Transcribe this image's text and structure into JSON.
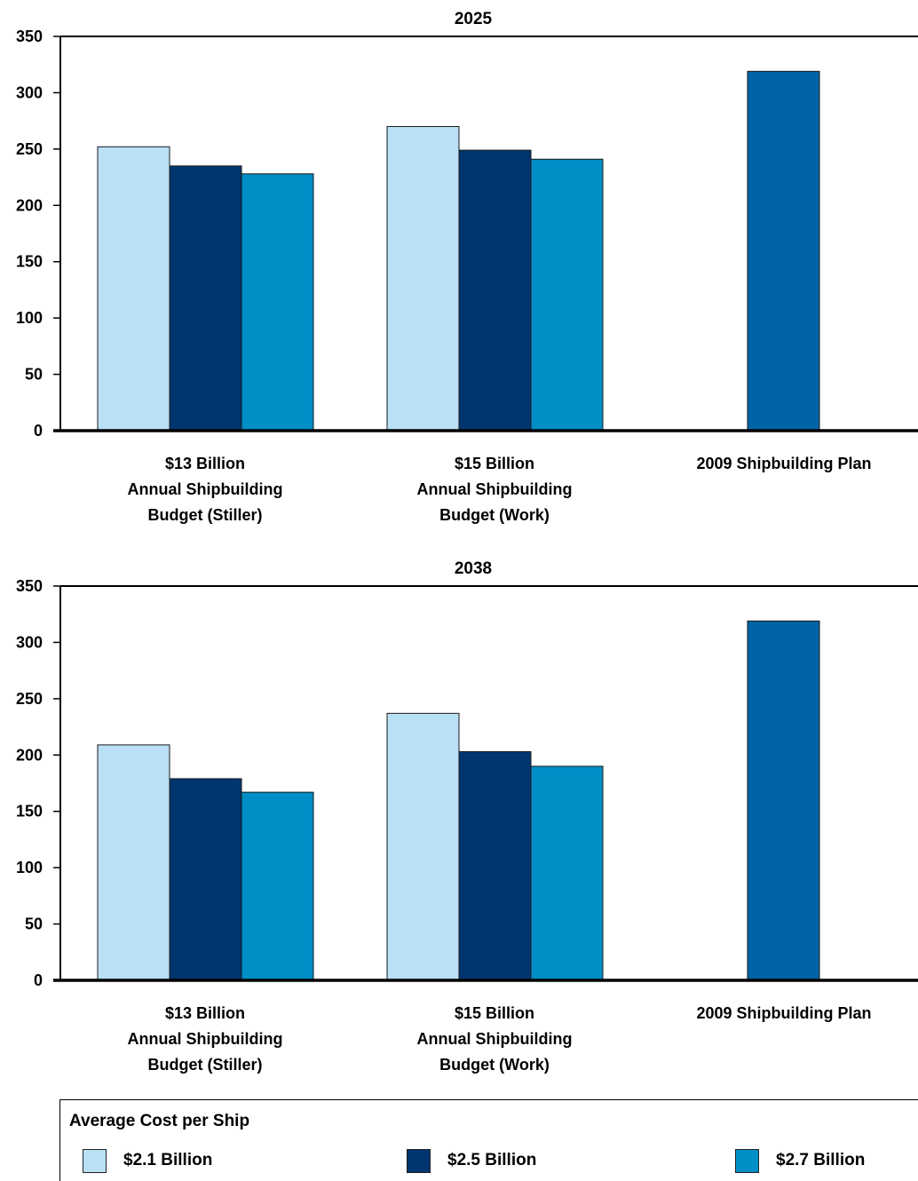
{
  "chart_data": [
    {
      "type": "bar",
      "title": "2025",
      "categories": [
        [
          "$13 Billion",
          "Annual Shipbuilding",
          "Budget (Stiller)"
        ],
        [
          "$15 Billion",
          "Annual Shipbuilding",
          "Budget (Work)"
        ],
        [
          "2009 Shipbuilding Plan"
        ]
      ],
      "ylim": [
        0,
        350
      ],
      "yticks": [
        0,
        50,
        100,
        150,
        200,
        250,
        300,
        350
      ],
      "series": [
        {
          "name": "$2.1 Billion",
          "color": "#b9e0f5",
          "values": [
            252,
            270,
            null
          ]
        },
        {
          "name": "$2.5 Billion",
          "color": "#00356f",
          "values": [
            235,
            249,
            null
          ]
        },
        {
          "name": "$2.7 Billion",
          "color": "#008ec6",
          "values": [
            228,
            241,
            null
          ]
        },
        {
          "name": "",
          "color": "#0063a5",
          "values": [
            null,
            null,
            319
          ]
        }
      ]
    },
    {
      "type": "bar",
      "title": "2038",
      "categories": [
        [
          "$13 Billion",
          "Annual Shipbuilding",
          "Budget (Stiller)"
        ],
        [
          "$15 Billion",
          "Annual Shipbuilding",
          "Budget (Work)"
        ],
        [
          "2009 Shipbuilding Plan"
        ]
      ],
      "ylim": [
        0,
        350
      ],
      "yticks": [
        0,
        50,
        100,
        150,
        200,
        250,
        300,
        350
      ],
      "series": [
        {
          "name": "$2.1 Billion",
          "color": "#b9e0f5",
          "values": [
            209,
            237,
            null
          ]
        },
        {
          "name": "$2.5 Billion",
          "color": "#00356f",
          "values": [
            179,
            203,
            null
          ]
        },
        {
          "name": "$2.7 Billion",
          "color": "#008ec6",
          "values": [
            167,
            190,
            null
          ]
        },
        {
          "name": "",
          "color": "#0063a5",
          "values": [
            null,
            null,
            319
          ]
        }
      ]
    }
  ],
  "legend": {
    "title": "Average Cost per Ship",
    "items": [
      {
        "label": "$2.1 Billion",
        "color": "#b9e0f5"
      },
      {
        "label": "$2.5 Billion",
        "color": "#00356f"
      },
      {
        "label": "$2.7 Billion",
        "color": "#008ec6"
      }
    ]
  }
}
